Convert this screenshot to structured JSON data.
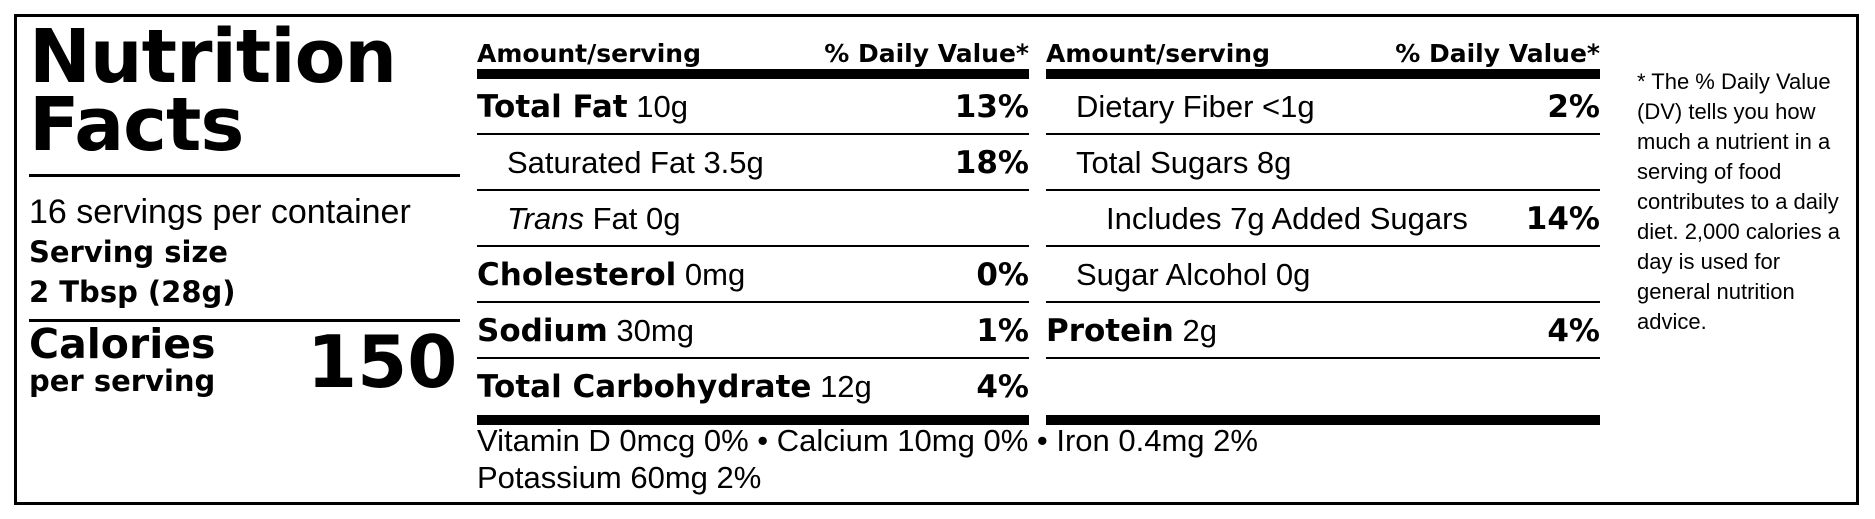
{
  "header": {
    "title_line1": "Nutrition",
    "title_line2": "Facts",
    "servings": "16 servings per container",
    "serving_size_label": "Serving size",
    "serving_size_value": "2 Tbsp (28g)",
    "calories_label": "Calories",
    "calories_sub": "per serving",
    "calories_value": "150"
  },
  "columns": [
    {
      "head_left": "Amount/serving",
      "head_right": "% Daily Value*",
      "rows": [
        {
          "bold_name": "Total Fat",
          "italic_name": "",
          "rest": " 10g",
          "dv": "13%",
          "indent": 0
        },
        {
          "bold_name": "",
          "italic_name": "",
          "rest": "Saturated Fat 3.5g",
          "dv": "18%",
          "indent": 1
        },
        {
          "bold_name": "",
          "italic_name": "Trans",
          "rest": " Fat 0g",
          "dv": "",
          "indent": 1
        },
        {
          "bold_name": "Cholesterol",
          "italic_name": "",
          "rest": " 0mg",
          "dv": "0%",
          "indent": 0
        },
        {
          "bold_name": "Sodium",
          "italic_name": "",
          "rest": " 30mg",
          "dv": "1%",
          "indent": 0
        },
        {
          "bold_name": "Total Carbohydrate",
          "italic_name": "",
          "rest": " 12g",
          "dv": "4%",
          "indent": 0
        }
      ]
    },
    {
      "head_left": "Amount/serving",
      "head_right": "% Daily Value*",
      "rows": [
        {
          "bold_name": "",
          "italic_name": "",
          "rest": "Dietary Fiber <1g",
          "dv": "2%",
          "indent": 1
        },
        {
          "bold_name": "",
          "italic_name": "",
          "rest": "Total Sugars 8g",
          "dv": "",
          "indent": 1
        },
        {
          "bold_name": "",
          "italic_name": "",
          "rest": "Includes 7g Added Sugars",
          "dv": "14%",
          "indent": 2
        },
        {
          "bold_name": "",
          "italic_name": "",
          "rest": "Sugar Alcohol 0g",
          "dv": "",
          "indent": 1
        },
        {
          "bold_name": "Protein",
          "italic_name": "",
          "rest": " 2g",
          "dv": "4%",
          "indent": 0
        },
        {
          "bold_name": "",
          "italic_name": "",
          "rest": "",
          "dv": "",
          "indent": 0
        }
      ]
    }
  ],
  "vitamins": {
    "line1": "Vitamin D 0mcg 0% • Calcium 10mg 0% • Iron 0.4mg 2%",
    "line2": "Potassium 60mg 2%"
  },
  "footnote": "* The % Daily Value (DV) tells you how much a nutrient in a serving of food contributes to a daily diet. 2,000 calories a day is used for general nutrition advice."
}
